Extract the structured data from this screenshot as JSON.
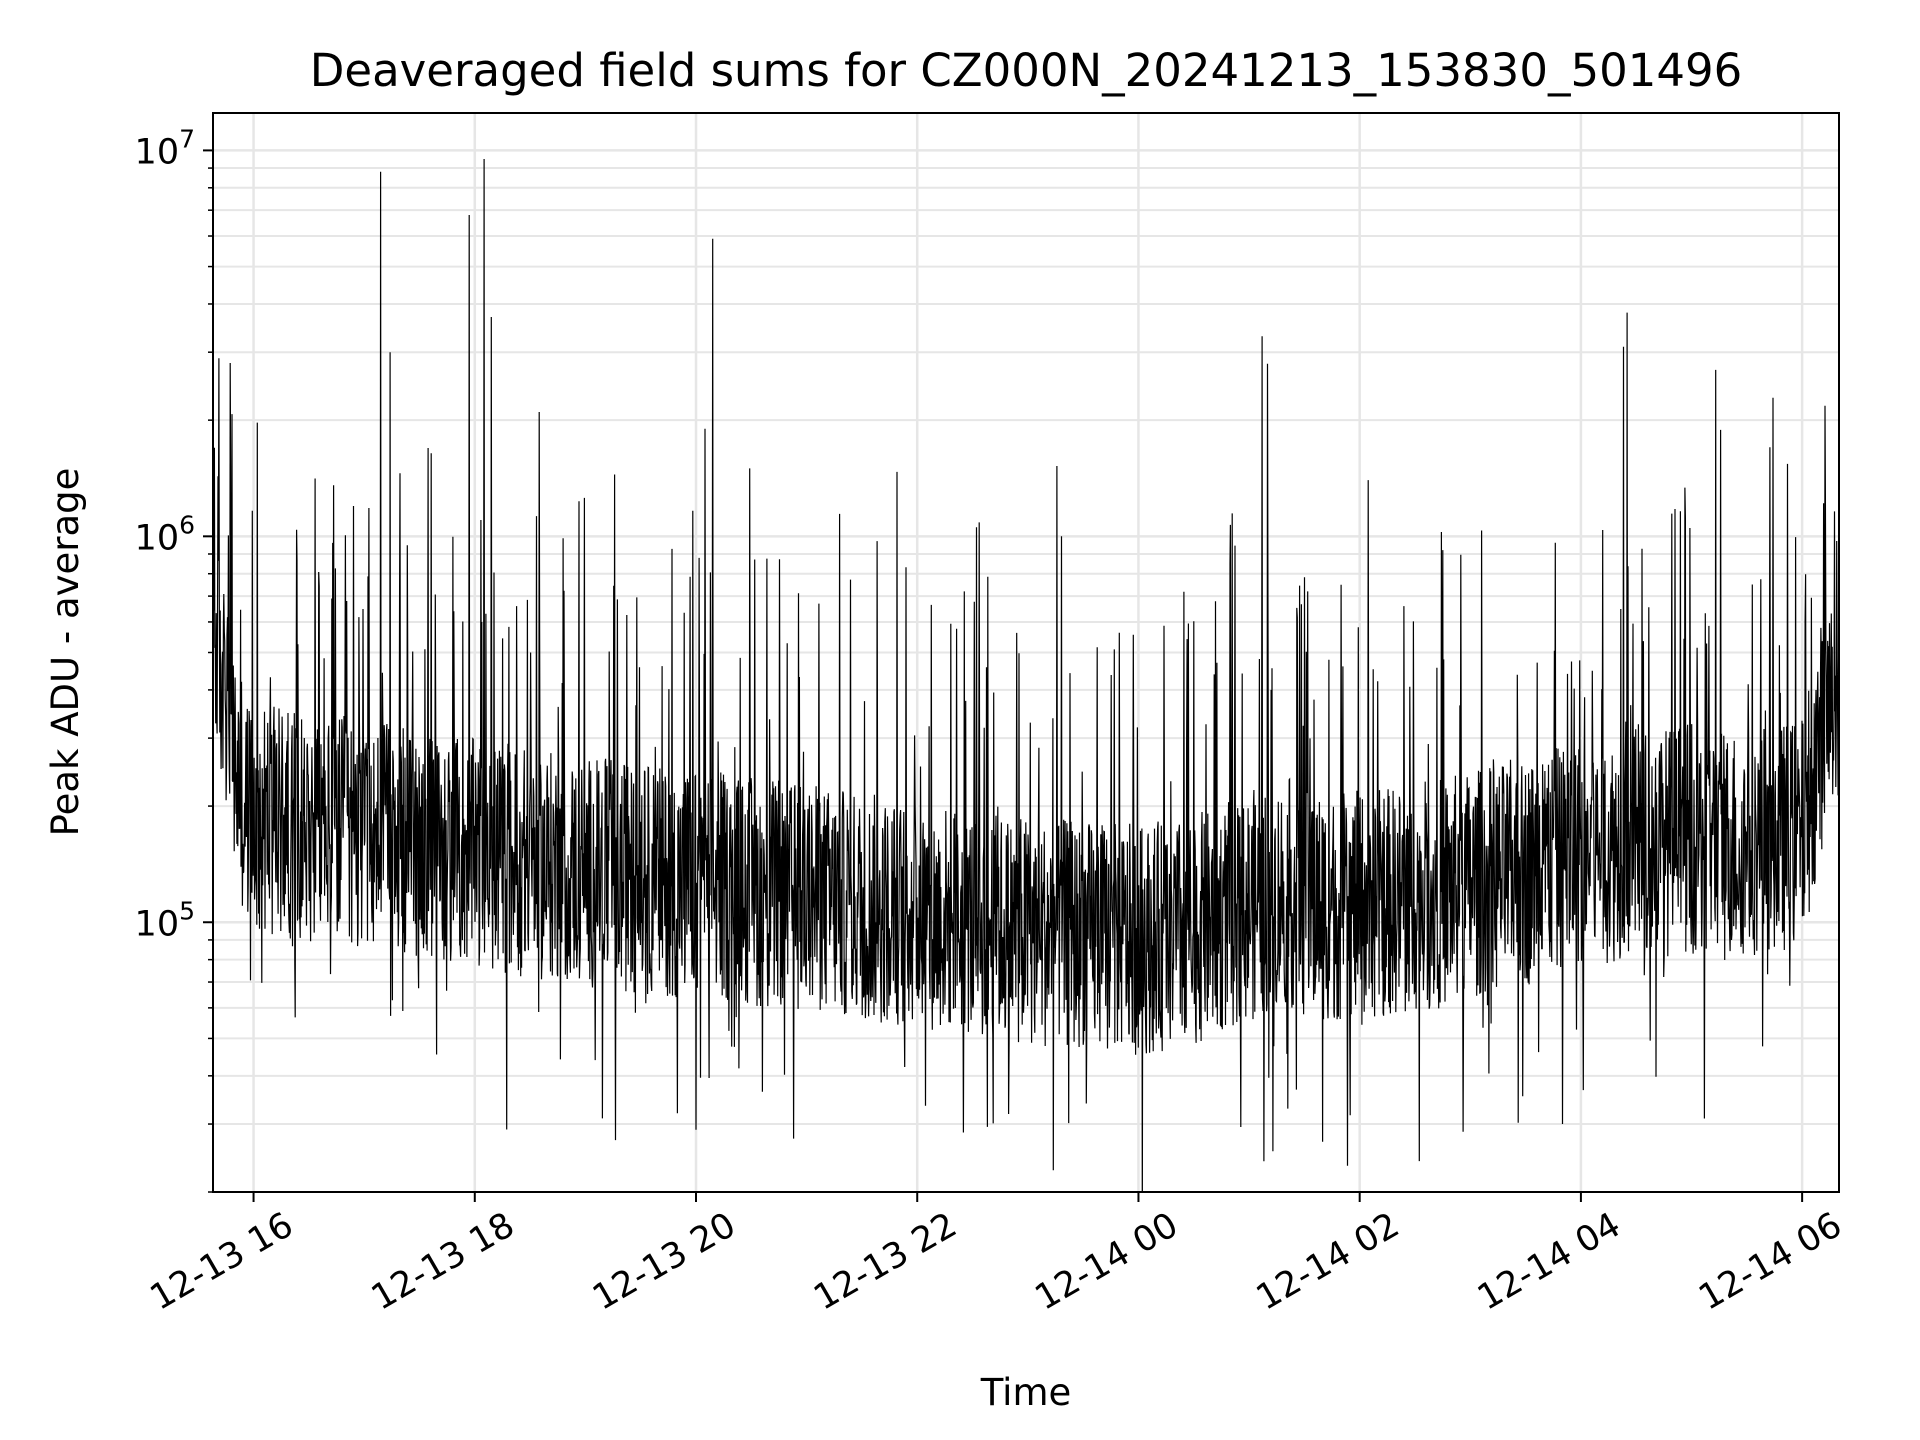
{
  "chart_data": {
    "type": "line",
    "title": "Deaveraged field sums for CZ000N_20241213_153830_501496",
    "xlabel": "Time",
    "ylabel": "Peak ADU - average",
    "yscale": "log",
    "grid": true,
    "grid_minor": true,
    "line_color": "#000000",
    "xlim": [
      "2024-12-13 15:38",
      "2024-12-14 06:20"
    ],
    "ylim": [
      20000,
      12500000
    ],
    "x_ticks": [
      {
        "value": "2024-12-13 16:00",
        "label": "12-13 16"
      },
      {
        "value": "2024-12-13 18:00",
        "label": "12-13 18"
      },
      {
        "value": "2024-12-13 20:00",
        "label": "12-13 20"
      },
      {
        "value": "2024-12-13 22:00",
        "label": "12-13 22"
      },
      {
        "value": "2024-12-14 00:00",
        "label": "12-14 00"
      },
      {
        "value": "2024-12-14 02:00",
        "label": "12-14 02"
      },
      {
        "value": "2024-12-14 04:00",
        "label": "12-14 04"
      },
      {
        "value": "2024-12-14 06:00",
        "label": "12-14 06"
      }
    ],
    "y_ticks": [
      {
        "value": 100000,
        "base": "10",
        "exp": "5"
      },
      {
        "value": 1000000,
        "base": "10",
        "exp": "6"
      },
      {
        "value": 10000000,
        "base": "10",
        "exp": "7"
      }
    ],
    "series": [
      {
        "x": [
          "2024-12-13 15:38",
          "2024-12-13 15:42",
          "2024-12-13 15:46",
          "2024-12-13 15:50",
          "2024-12-13 15:55",
          "2024-12-13 16:00",
          "2024-12-13 16:20",
          "2024-12-13 16:40",
          "2024-12-13 17:00",
          "2024-12-13 17:10",
          "2024-12-13 17:20",
          "2024-12-13 17:40",
          "2024-12-13 18:00",
          "2024-12-13 18:20",
          "2024-12-13 18:40",
          "2024-12-13 19:00",
          "2024-12-13 19:30",
          "2024-12-13 20:00",
          "2024-12-13 20:30",
          "2024-12-13 21:00",
          "2024-12-13 21:30",
          "2024-12-13 22:00",
          "2024-12-13 22:30",
          "2024-12-13 23:00",
          "2024-12-13 23:30",
          "2024-12-14 00:00",
          "2024-12-14 00:30",
          "2024-12-14 01:00",
          "2024-12-14 01:20",
          "2024-12-14 01:40",
          "2024-12-14 02:00",
          "2024-12-14 02:30",
          "2024-12-14 03:00",
          "2024-12-14 03:30",
          "2024-12-14 04:00",
          "2024-12-14 04:30",
          "2024-12-14 05:00",
          "2024-12-14 05:30",
          "2024-12-14 06:00",
          "2024-12-14 06:10",
          "2024-12-14 06:20"
        ],
        "y": [
          600000,
          450000,
          350000,
          250000,
          200000,
          190000,
          180000,
          175000,
          170000,
          165000,
          160000,
          155000,
          150000,
          145000,
          140000,
          135000,
          130000,
          125000,
          120000,
          115000,
          110000,
          105000,
          100000,
          95000,
          92000,
          90000,
          95000,
          110000,
          120000,
          110000,
          110000,
          115000,
          125000,
          135000,
          150000,
          160000,
          165000,
          160000,
          170000,
          300000,
          400000
        ]
      }
    ],
    "spikes": [
      {
        "x": "2024-12-13 17:09",
        "y": 8800000
      },
      {
        "x": "2024-12-13 17:14",
        "y": 3000000
      },
      {
        "x": "2024-12-13 17:57",
        "y": 6800000
      },
      {
        "x": "2024-12-13 18:05",
        "y": 9500000
      },
      {
        "x": "2024-12-13 18:09",
        "y": 3700000
      },
      {
        "x": "2024-12-13 18:35",
        "y": 2100000
      },
      {
        "x": "2024-12-13 20:05",
        "y": 1900000
      },
      {
        "x": "2024-12-13 20:09",
        "y": 5900000
      },
      {
        "x": "2024-12-14 01:07",
        "y": 3300000
      },
      {
        "x": "2024-12-14 01:10",
        "y": 2800000
      },
      {
        "x": "2024-12-14 04:23",
        "y": 3100000
      },
      {
        "x": "2024-12-14 04:25",
        "y": 3800000
      },
      {
        "x": "2024-12-14 05:13",
        "y": 2700000
      }
    ],
    "dips": [
      {
        "x": "2024-12-13 19:50",
        "y": 32000
      },
      {
        "x": "2024-12-13 20:00",
        "y": 29000
      },
      {
        "x": "2024-12-13 20:53",
        "y": 27500
      },
      {
        "x": "2024-12-13 22:38",
        "y": 29500
      },
      {
        "x": "2024-12-14 01:13",
        "y": 25500
      },
      {
        "x": "2024-12-14 01:40",
        "y": 27000
      },
      {
        "x": "2024-12-14 03:50",
        "y": 30000
      },
      {
        "x": "2024-12-14 05:07",
        "y": 31000
      }
    ]
  }
}
